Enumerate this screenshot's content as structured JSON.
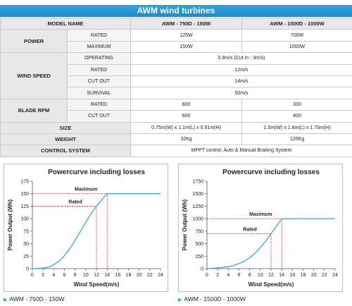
{
  "title": "AWM wind turbines",
  "table": {
    "header": {
      "label": "MODEL NAME",
      "models": [
        "AWM - 750D - 150W",
        "AWM - 1500D - 1000W"
      ]
    },
    "power": {
      "label": "POWER",
      "rows": [
        {
          "label": "RATED",
          "values": [
            "125W",
            "700W"
          ]
        },
        {
          "label": "MAXIMUM",
          "values": [
            "150W",
            "1000W"
          ]
        }
      ]
    },
    "wind_speed": {
      "label": "WIND SPEED",
      "rows": [
        {
          "label": "OPERATING",
          "value": "0.9m/s (Cut in : 3m/s)"
        },
        {
          "label": "RATED",
          "value": "12m/s"
        },
        {
          "label": "CUT OUT",
          "value": "14m/s"
        },
        {
          "label": "SURVIVAL",
          "value": "50m/s"
        }
      ]
    },
    "blade_rpm": {
      "label": "BLADE RPM",
      "rows": [
        {
          "label": "RATED",
          "values": [
            "600",
            "330"
          ]
        },
        {
          "label": "CUT OUT",
          "values": [
            "600",
            "400"
          ]
        }
      ]
    },
    "size": {
      "label": "SIZE",
      "values": [
        "0.75m(W) x 1.1m(L) x 0.91m(H)",
        "1.5m(W) x 1.8m(L) x 1.75m(H)"
      ]
    },
    "weight": {
      "label": "WEIGHT",
      "values": [
        "32Kg",
        "120Kg"
      ]
    },
    "control": {
      "label": "CONTROL SYSTEM",
      "value": "MPPT control, Auto & Manual Braking System"
    }
  },
  "chart_data": [
    {
      "type": "line",
      "title": "Powercurve including losses",
      "xlabel": "Wind Speed(m/s)",
      "ylabel": "Power Output (Wh)",
      "xlim": [
        0,
        24
      ],
      "ylim": [
        0,
        175
      ],
      "xticks": [
        "0",
        "2",
        "4",
        "6",
        "8",
        "10",
        "12",
        "14",
        "16",
        "18",
        "20",
        "22",
        "24"
      ],
      "yticks": [
        "0",
        "25",
        "50",
        "75",
        "100",
        "125",
        "150",
        "175"
      ],
      "x": [
        0,
        2,
        3,
        4,
        5,
        6,
        7,
        8,
        9,
        10,
        11,
        12,
        13,
        14,
        16,
        18,
        20,
        22,
        24
      ],
      "y": [
        0,
        1,
        3,
        8,
        15,
        26,
        40,
        57,
        75,
        93,
        110,
        125,
        138,
        150,
        150,
        150,
        150,
        150,
        150
      ],
      "annotations": [
        {
          "label": "Maximum",
          "x": 14,
          "y": 150
        },
        {
          "label": "Rated",
          "x": 12,
          "y": 125
        }
      ],
      "caption": "AWM - 750D - 150W",
      "line_color": "#3aa8dc",
      "ref_color": "#cc2222"
    },
    {
      "type": "line",
      "title": "Powercurve including losses",
      "xlabel": "Wind Speed(m/s)",
      "ylabel": "Power Output (Wh)",
      "xlim": [
        0,
        24
      ],
      "ylim": [
        0,
        1750
      ],
      "xticks": [
        "0",
        "2",
        "4",
        "6",
        "8",
        "10",
        "12",
        "14",
        "16",
        "18",
        "20",
        "22",
        "24"
      ],
      "yticks": [
        "0",
        "250",
        "500",
        "750",
        "1000",
        "1250",
        "1500",
        "1750"
      ],
      "x": [
        0,
        2,
        4,
        5,
        6,
        7,
        8,
        9,
        10,
        11,
        12,
        13,
        14,
        16,
        18,
        20,
        22,
        24
      ],
      "y": [
        0,
        15,
        40,
        65,
        100,
        150,
        220,
        310,
        420,
        550,
        700,
        850,
        1000,
        1000,
        1000,
        1000,
        1000,
        1000
      ],
      "annotations": [
        {
          "label": "Maximum",
          "x": 14,
          "y": 1000
        },
        {
          "label": "Rated",
          "x": 12,
          "y": 700
        }
      ],
      "caption": "AWM - 1500D - 1000W",
      "line_color": "#3aa8dc",
      "ref_color": "#cc2222"
    }
  ]
}
